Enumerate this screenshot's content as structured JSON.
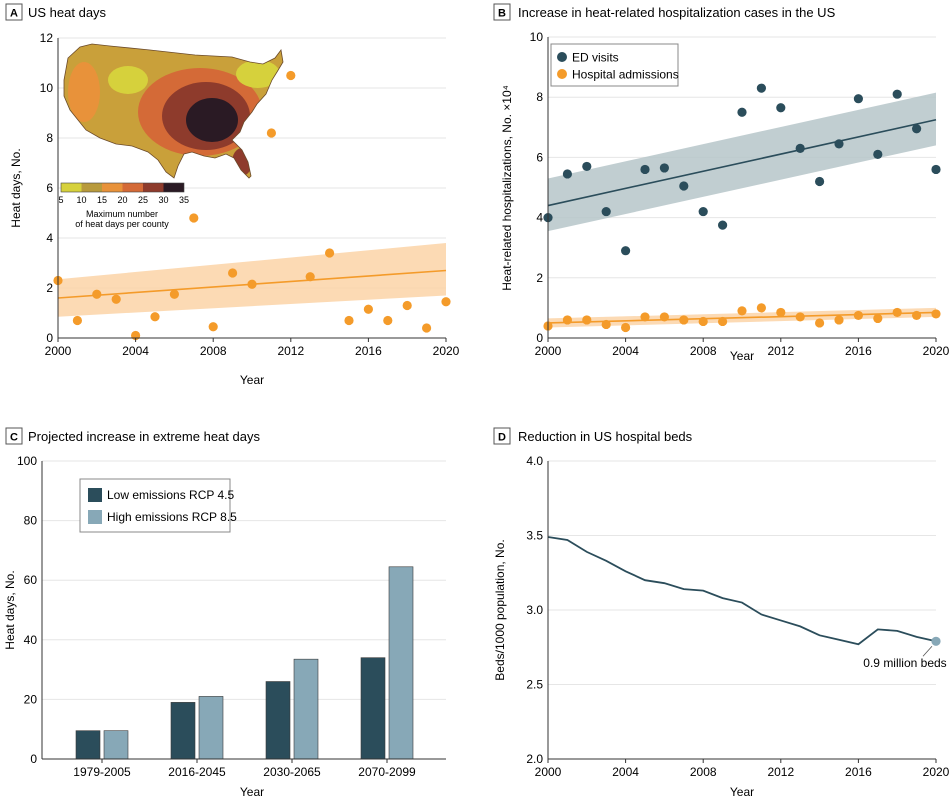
{
  "colors": {
    "orange": "#f49b2a",
    "orange_band": "#fbd3a7",
    "teal": "#2b4d5b",
    "teal_band": "#b6c5c9",
    "light_blue": "#87a8b7",
    "line_grey": "#bdbdbd",
    "grid": "#e6e6e6"
  },
  "map_legend": {
    "ticks": [
      "5",
      "10",
      "15",
      "20",
      "25",
      "30",
      "35"
    ],
    "colors": [
      "#d6d13c",
      "#b89a3c",
      "#e8923a",
      "#d46a37",
      "#8e3b2c",
      "#2a1a24"
    ],
    "caption_line1": "Maximum number",
    "caption_line2": "of heat days per county"
  },
  "chart_data": [
    {
      "panel": "A",
      "type": "scatter",
      "title": "US heat days",
      "xlabel": "Year",
      "ylabel": "Heat days, No.",
      "xlim": [
        2000,
        2020
      ],
      "ylim": [
        0,
        12
      ],
      "xticks": [
        "2000",
        "2004",
        "2008",
        "2012",
        "2016",
        "2020"
      ],
      "yticks": [
        "0",
        "2",
        "4",
        "6",
        "8",
        "10",
        "12"
      ],
      "grid": true,
      "series": [
        {
          "name": "Heat days",
          "x": [
            2000,
            2001,
            2002,
            2003,
            2004,
            2005,
            2006,
            2007,
            2008,
            2009,
            2010,
            2011,
            2012,
            2013,
            2014,
            2015,
            2016,
            2017,
            2018,
            2019,
            2020
          ],
          "y": [
            2.3,
            0.7,
            1.75,
            1.55,
            0.1,
            0.85,
            1.75,
            4.8,
            0.45,
            2.6,
            2.15,
            8.2,
            10.5,
            2.45,
            3.4,
            0.7,
            1.15,
            0.7,
            1.3,
            0.4,
            1.45
          ]
        }
      ],
      "trend": {
        "x": [
          2000,
          2020
        ],
        "y": [
          1.6,
          2.7
        ],
        "band_lower": [
          0.85,
          1.7
        ],
        "band_upper": [
          2.35,
          3.8
        ]
      }
    },
    {
      "panel": "B",
      "type": "scatter",
      "title": "Increase in heat-related hospitalization cases in the US",
      "xlabel": "Year",
      "ylabel": "Heat-related hospitalizations, No. ×10⁴",
      "xlim": [
        2000,
        2020
      ],
      "ylim": [
        0,
        10
      ],
      "xticks": [
        "2000",
        "2004",
        "2008",
        "2012",
        "2016",
        "2020"
      ],
      "yticks": [
        "0",
        "2",
        "4",
        "6",
        "8",
        "10"
      ],
      "grid": true,
      "legend": [
        "ED visits",
        "Hospital admissions"
      ],
      "series": [
        {
          "name": "ED visits",
          "x": [
            2000,
            2001,
            2002,
            2003,
            2004,
            2005,
            2006,
            2007,
            2008,
            2009,
            2010,
            2011,
            2012,
            2013,
            2014,
            2015,
            2016,
            2017,
            2018,
            2019,
            2020
          ],
          "y": [
            4.0,
            5.45,
            5.7,
            4.2,
            2.9,
            5.6,
            5.65,
            5.05,
            4.2,
            3.75,
            7.5,
            8.3,
            7.65,
            6.3,
            5.2,
            6.45,
            7.95,
            6.1,
            8.1,
            6.95,
            5.6
          ]
        },
        {
          "name": "Hospital admissions",
          "x": [
            2000,
            2001,
            2002,
            2003,
            2004,
            2005,
            2006,
            2007,
            2008,
            2009,
            2010,
            2011,
            2012,
            2013,
            2014,
            2015,
            2016,
            2017,
            2018,
            2019,
            2020
          ],
          "y": [
            0.4,
            0.6,
            0.6,
            0.45,
            0.35,
            0.7,
            0.7,
            0.6,
            0.55,
            0.55,
            0.9,
            1.0,
            0.85,
            0.7,
            0.5,
            0.6,
            0.75,
            0.65,
            0.85,
            0.75,
            0.8
          ]
        }
      ],
      "trends": [
        {
          "name": "ED visits",
          "x": [
            2000,
            2020
          ],
          "y": [
            4.4,
            7.25
          ],
          "band_lower": [
            3.55,
            6.4
          ],
          "band_upper": [
            5.3,
            8.15
          ]
        },
        {
          "name": "Hospital admissions",
          "x": [
            2000,
            2020
          ],
          "y": [
            0.5,
            0.85
          ],
          "band_lower": [
            0.35,
            0.7
          ],
          "band_upper": [
            0.65,
            1.0
          ]
        }
      ]
    },
    {
      "panel": "C",
      "type": "bar",
      "title": "Projected increase in extreme heat days",
      "xlabel": "Year",
      "ylabel": "Heat days, No.",
      "ylim": [
        0,
        100
      ],
      "yticks": [
        "0",
        "20",
        "40",
        "60",
        "80",
        "100"
      ],
      "grid": true,
      "categories": [
        "1979-2005",
        "2016-2045",
        "2030-2065",
        "2070-2099"
      ],
      "series": [
        {
          "name": "Low emissions RCP 4.5",
          "values": [
            9.5,
            19,
            26,
            34
          ]
        },
        {
          "name": "High emissions RCP 8.5",
          "values": [
            9.5,
            21,
            33.5,
            64.5
          ]
        }
      ]
    },
    {
      "panel": "D",
      "type": "line",
      "title": "Reduction in US hospital beds",
      "xlabel": "Year",
      "ylabel": "Beds/1000 population, No.",
      "xlim": [
        2000,
        2020
      ],
      "ylim": [
        2.0,
        4.0
      ],
      "xticks": [
        "2000",
        "2004",
        "2008",
        "2012",
        "2016",
        "2020"
      ],
      "yticks": [
        "2.0",
        "2.5",
        "3.0",
        "3.5",
        "4.0"
      ],
      "grid": true,
      "series": [
        {
          "name": "Beds per 1000",
          "x": [
            2000,
            2001,
            2002,
            2003,
            2004,
            2005,
            2006,
            2007,
            2008,
            2009,
            2010,
            2011,
            2012,
            2013,
            2014,
            2015,
            2016,
            2017,
            2018,
            2019,
            2020
          ],
          "y": [
            3.49,
            3.47,
            3.39,
            3.33,
            3.26,
            3.2,
            3.18,
            3.14,
            3.13,
            3.08,
            3.05,
            2.97,
            2.93,
            2.89,
            2.83,
            2.8,
            2.77,
            2.87,
            2.86,
            2.82,
            2.79
          ]
        }
      ],
      "annotation": {
        "text": "0.9 million beds",
        "x": 2020,
        "y": 2.79
      }
    }
  ]
}
